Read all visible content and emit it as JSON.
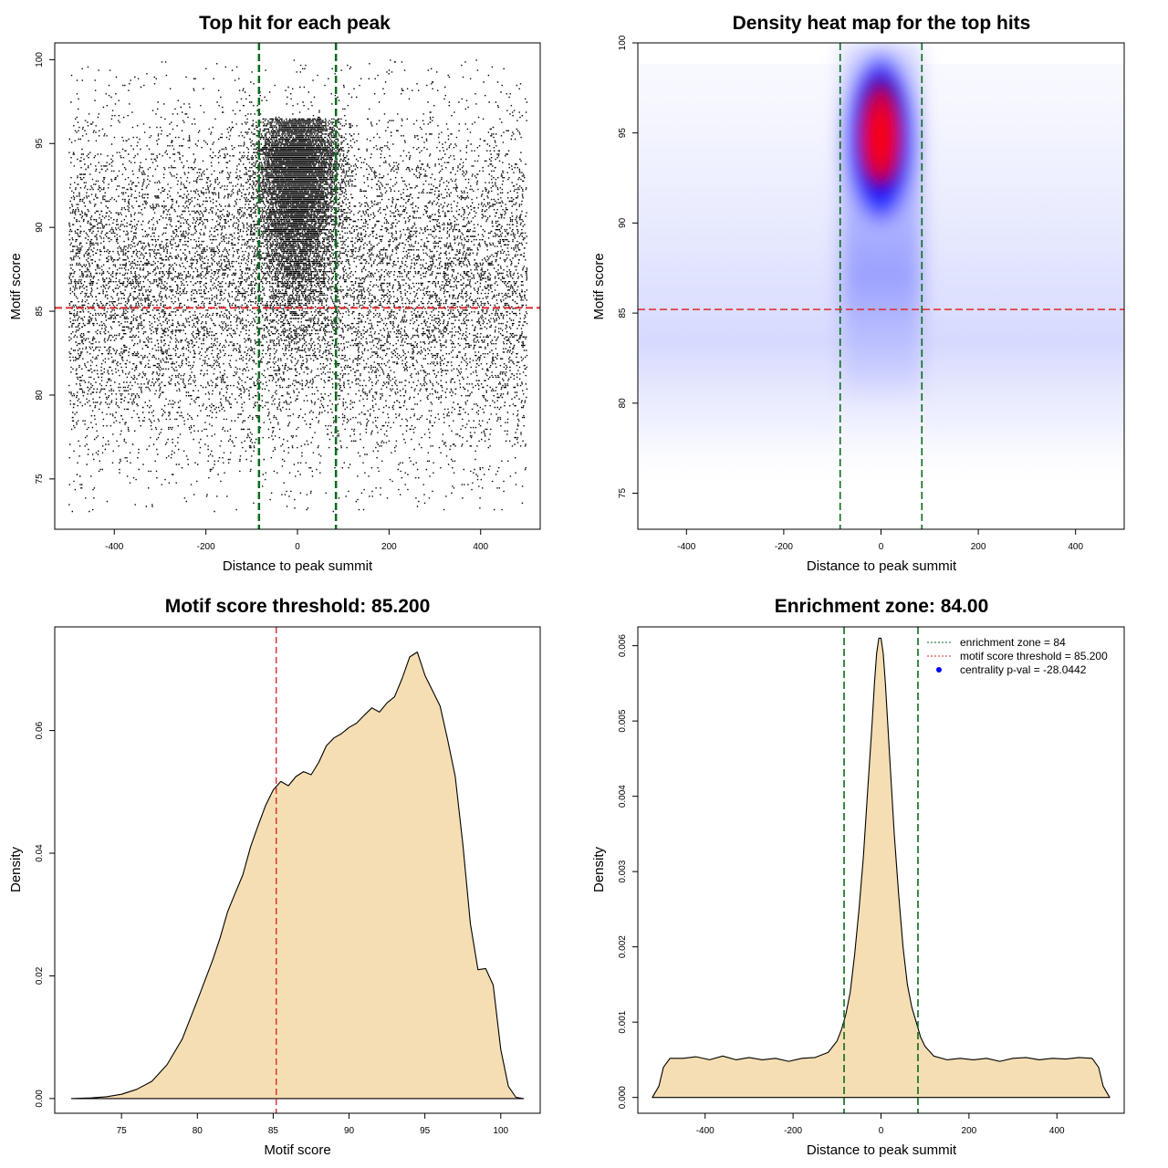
{
  "colors": {
    "threshold_line": "#e0282e",
    "zone_line": "#0b6b1c",
    "density_fill": "#f5deb3",
    "points": "#000000",
    "heat_low": "#ffffff",
    "heat_mid": "#0000ff",
    "heat_high": "#ff0000",
    "legend_point": "#0000ff"
  },
  "chart_data": [
    {
      "type": "scatter",
      "title": "Top hit for each peak",
      "xlabel": "Distance to peak summit",
      "ylabel": "Motif score",
      "xticks": [
        "-400",
        "-200",
        "0",
        "200",
        "400"
      ],
      "yticks": [
        "75",
        "80",
        "85",
        "90",
        "95",
        "100"
      ],
      "xlim": [
        -530,
        530
      ],
      "ylim": [
        72,
        101
      ],
      "point_distribution": {
        "x_range": [
          -500,
          500
        ],
        "background_score_range": [
          73,
          100
        ],
        "central_cluster_x_range": [
          -84,
          84
        ],
        "central_cluster_score_mode": 95,
        "count_approx": 26000
      },
      "hlines": [
        85.2
      ],
      "vlines": [
        -84,
        84
      ]
    },
    {
      "type": "heatmap",
      "title": "Density heat map for the top hits",
      "xlabel": "Distance to peak summit",
      "ylabel": "Motif score",
      "xticks": [
        "-400",
        "-200",
        "0",
        "200",
        "400"
      ],
      "yticks": [
        "75",
        "80",
        "85",
        "90",
        "95",
        "100"
      ],
      "xlim": [
        -500,
        500
      ],
      "ylim": [
        73,
        100
      ],
      "density_peak": {
        "x": 0,
        "y": 95
      },
      "hlines": [
        85.2
      ],
      "vlines": [
        -84,
        84
      ]
    },
    {
      "type": "area",
      "title": "Motif score threshold: 85.200",
      "xlabel": "Motif score",
      "ylabel": "Density",
      "xticks": [
        "75",
        "80",
        "85",
        "90",
        "95",
        "100"
      ],
      "yticks": [
        "0.00",
        "0.02",
        "0.04",
        "0.06"
      ],
      "xlim": [
        70.6,
        102.6
      ],
      "ylim": [
        -0.0024,
        0.0769
      ],
      "x": [
        71.7,
        73,
        74,
        75,
        76,
        77,
        78,
        79,
        80,
        81,
        81.5,
        82,
        82.5,
        83,
        83.5,
        84,
        84.5,
        85,
        85.5,
        86,
        86.5,
        87,
        87.5,
        88,
        88.5,
        89,
        89.5,
        90,
        90.5,
        91,
        91.5,
        92,
        92.5,
        93,
        93.5,
        94,
        94.5,
        95,
        95.5,
        96,
        96.5,
        97,
        97.5,
        98,
        98.5,
        99,
        99.5,
        100,
        100.5,
        101,
        101.5
      ],
      "y": [
        0.0,
        0.0001,
        0.0003,
        0.0007,
        0.0015,
        0.0028,
        0.0055,
        0.0097,
        0.016,
        0.0225,
        0.0262,
        0.0305,
        0.0335,
        0.0365,
        0.041,
        0.0445,
        0.0478,
        0.0503,
        0.0517,
        0.051,
        0.0525,
        0.0533,
        0.0528,
        0.0548,
        0.0575,
        0.0588,
        0.0595,
        0.0605,
        0.0612,
        0.0625,
        0.0637,
        0.063,
        0.0645,
        0.0655,
        0.0685,
        0.072,
        0.0728,
        0.069,
        0.0665,
        0.064,
        0.0585,
        0.0525,
        0.0415,
        0.0285,
        0.021,
        0.0212,
        0.0185,
        0.008,
        0.002,
        0.0002,
        0.0
      ],
      "vlines": [
        85.2
      ]
    },
    {
      "type": "area",
      "title": "Enrichment zone: 84.00",
      "xlabel": "Distance to peak summit",
      "ylabel": "Density",
      "xticks": [
        "-400",
        "-200",
        "0",
        "200",
        "400"
      ],
      "yticks": [
        "0.000",
        "0.001",
        "0.002",
        "0.003",
        "0.004",
        "0.005",
        "0.006"
      ],
      "xlim": [
        -553,
        553
      ],
      "ylim": [
        -0.00021,
        0.00625
      ],
      "x": [
        -520,
        -505,
        -495,
        -480,
        -450,
        -420,
        -390,
        -360,
        -330,
        -300,
        -270,
        -240,
        -210,
        -180,
        -150,
        -120,
        -100,
        -90,
        -80,
        -70,
        -60,
        -50,
        -40,
        -30,
        -20,
        -15,
        -10,
        -5,
        0,
        5,
        10,
        15,
        20,
        30,
        40,
        50,
        60,
        70,
        80,
        90,
        100,
        120,
        150,
        180,
        210,
        240,
        270,
        300,
        330,
        360,
        390,
        420,
        450,
        480,
        495,
        505,
        520
      ],
      "y": [
        0.0,
        0.00015,
        0.0004,
        0.00052,
        0.00052,
        0.00054,
        0.0005,
        0.00055,
        0.0005,
        0.00053,
        0.0005,
        0.00052,
        0.00048,
        0.00052,
        0.00053,
        0.0006,
        0.00075,
        0.0009,
        0.0011,
        0.0014,
        0.0019,
        0.0025,
        0.0032,
        0.0041,
        0.005,
        0.0055,
        0.0059,
        0.0061,
        0.0061,
        0.0059,
        0.0055,
        0.005,
        0.0045,
        0.0035,
        0.0027,
        0.002,
        0.0015,
        0.0012,
        0.001,
        0.0008,
        0.00068,
        0.00055,
        0.0005,
        0.00052,
        0.0005,
        0.00052,
        0.00048,
        0.00052,
        0.00053,
        0.0005,
        0.00052,
        0.00051,
        0.00053,
        0.00052,
        0.0004,
        0.00015,
        0.0
      ],
      "vlines": [
        -84,
        84
      ],
      "legend": {
        "position": "top-right",
        "entries": [
          {
            "label": "enrichment zone = 84",
            "style": "dotted-green"
          },
          {
            "label": "motif score threshold = 85.200",
            "style": "dotted-red"
          },
          {
            "label": "centrality p-val = -28.0442",
            "style": "blue-point"
          }
        ]
      }
    }
  ]
}
